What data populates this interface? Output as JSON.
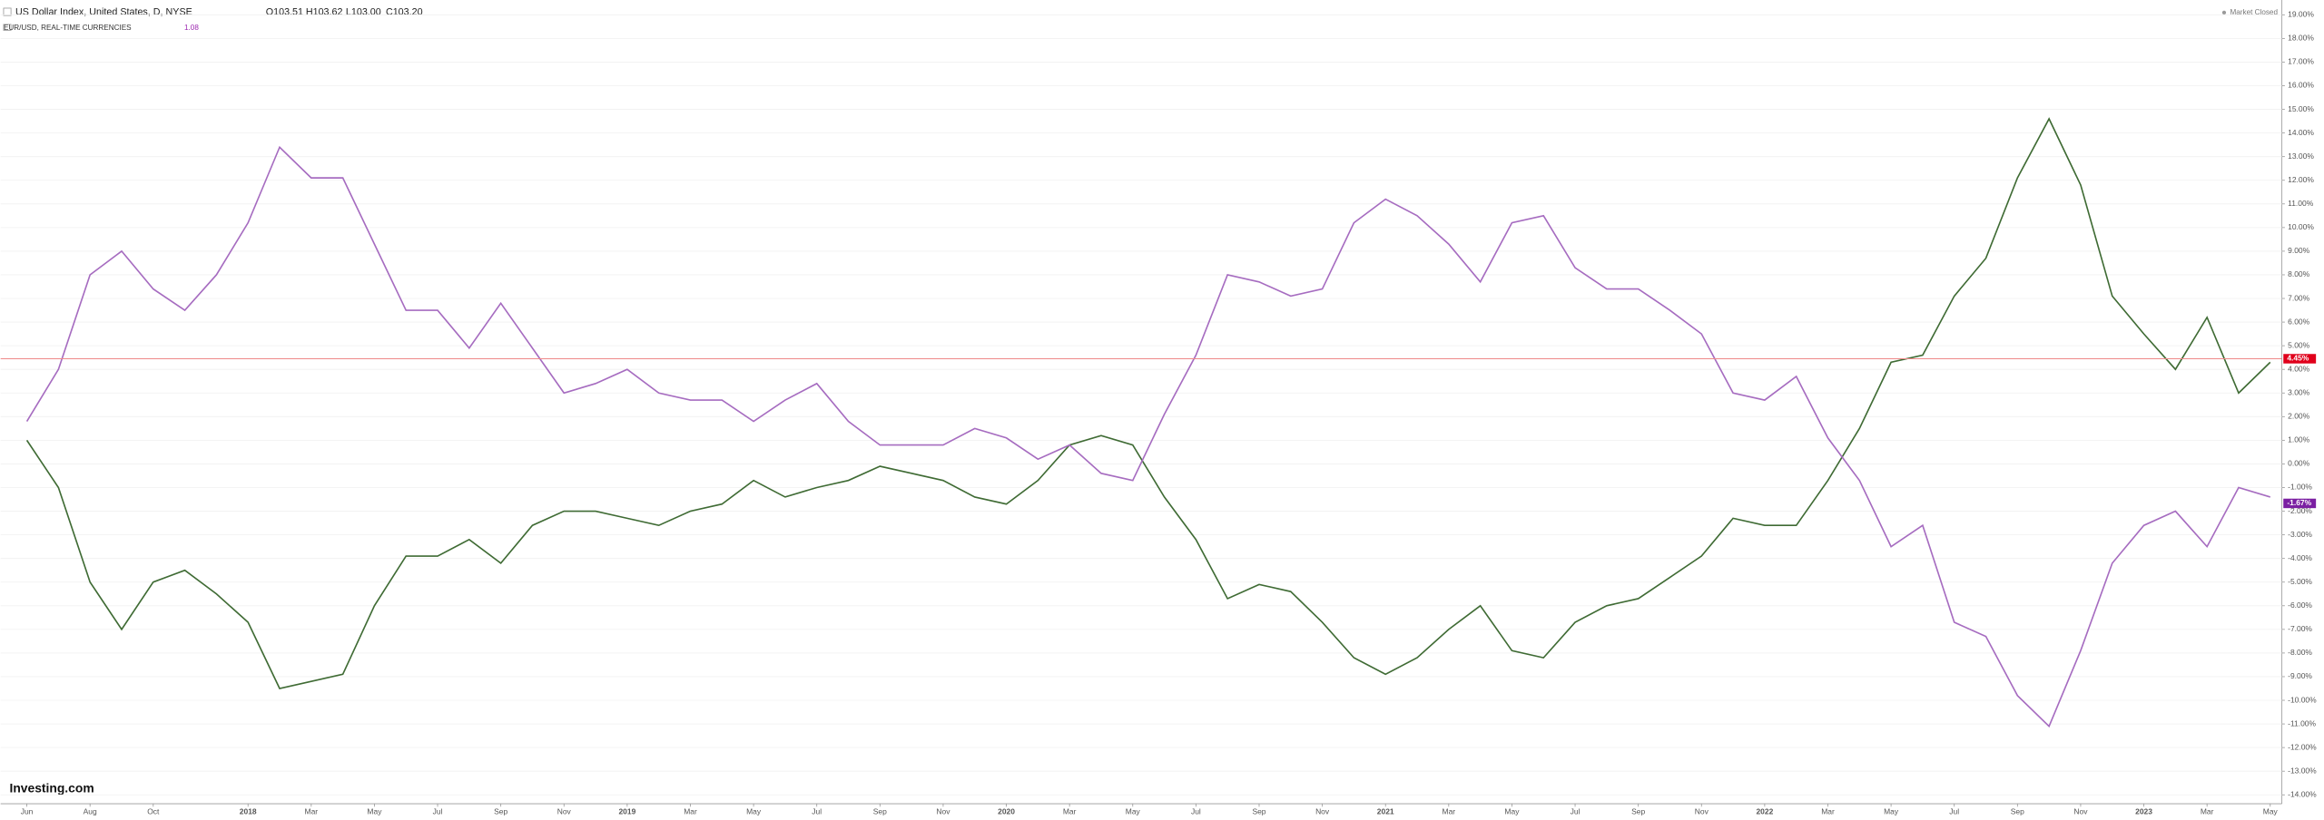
{
  "chart_data": {
    "type": "line",
    "status": "Market Closed",
    "brand": "Investing.com",
    "ohlc": [
      "O103.51",
      "H103.62",
      "L103.00",
      "C103.20"
    ],
    "subtitle_value": 1.08,
    "categories": [
      "Jun",
      null,
      "Aug",
      null,
      "Oct",
      null,
      null,
      "2018",
      null,
      "Mar",
      null,
      "May",
      null,
      "Jul",
      null,
      "Sep",
      null,
      "Nov",
      null,
      "2019",
      null,
      "Mar",
      null,
      "May",
      null,
      "Jul",
      null,
      "Sep",
      null,
      "Nov",
      null,
      "2020",
      null,
      "Mar",
      null,
      "May",
      null,
      "Jul",
      null,
      "Sep",
      null,
      "Nov",
      null,
      "2021",
      null,
      "Mar",
      null,
      "May",
      null,
      "Jul",
      null,
      "Sep",
      null,
      "Nov",
      null,
      "2022",
      null,
      "Mar",
      null,
      "May",
      null,
      "Jul",
      null,
      "Sep",
      null,
      "Nov",
      null,
      "2023",
      null,
      "Mar",
      null,
      "May"
    ],
    "series": [
      {
        "name": "US Dollar Index, United States, D, NYSE",
        "color": "#3f6b34",
        "values": [
          1,
          -1,
          -5,
          -7,
          -5,
          -4.5,
          -5.5,
          -6.7,
          -9.5,
          -9.2,
          -8.9,
          -6,
          -3.9,
          -3.9,
          -3.2,
          -4.2,
          -2.6,
          -2,
          -2,
          -2.3,
          -2.6,
          -2,
          -1.7,
          -0.7,
          -1.4,
          -1,
          -0.7,
          -0.1,
          -0.4,
          -0.7,
          -1.4,
          -1.7,
          -0.7,
          0.8,
          1.2,
          0.8,
          -1.4,
          -3.2,
          -5.7,
          -5.1,
          -5.4,
          -6.7,
          -8.2,
          -8.9,
          -8.2,
          -7,
          -6,
          -7.9,
          -8.2,
          -6.7,
          -6,
          -5.7,
          -4.8,
          -3.9,
          -2.3,
          -2.6,
          -2.6,
          -0.7,
          1.5,
          4.3,
          4.6,
          7.1,
          8.7,
          12.1,
          14.6,
          11.8,
          7.1,
          5.5,
          4,
          6.2,
          3,
          4.3
        ],
        "last": {
          "value": 4.45,
          "label": "4.45%"
        },
        "marker_color": "#e0001b"
      },
      {
        "name": "EUR/USD, REAL-TIME CURRENCIES",
        "color": "#a66cc0",
        "values": [
          1.8,
          4,
          8,
          9,
          7.4,
          6.5,
          8,
          10.2,
          13.4,
          12.1,
          12.1,
          9.3,
          6.5,
          6.5,
          4.9,
          6.8,
          4.9,
          3,
          3.4,
          4,
          3,
          2.7,
          2.7,
          1.8,
          2.7,
          3.4,
          1.8,
          0.8,
          0.8,
          0.8,
          1.5,
          1.1,
          0.2,
          0.8,
          -0.4,
          -0.7,
          2.1,
          4.6,
          8,
          7.7,
          7.1,
          7.4,
          10.2,
          11.2,
          10.5,
          9.3,
          7.7,
          10.2,
          10.5,
          8.3,
          7.4,
          7.4,
          6.5,
          5.5,
          3,
          2.7,
          3.7,
          1.1,
          -0.7,
          -3.5,
          -2.6,
          -6.7,
          -7.3,
          -9.8,
          -11.1,
          -7.9,
          -4.2,
          -2.6,
          -2,
          -3.5,
          -1,
          -1.4
        ],
        "last": {
          "value": -1.67,
          "label": "-1.67%"
        },
        "marker_color": "#7b1fa2"
      }
    ],
    "ylim": [
      -14.2,
      19.6
    ],
    "yticks": [
      {
        "value": 19,
        "label": "19.00%"
      },
      {
        "value": 18,
        "label": "18.00%"
      },
      {
        "value": 17,
        "label": "17.00%"
      },
      {
        "value": 16,
        "label": "16.00%"
      },
      {
        "value": 15,
        "label": "15.00%"
      },
      {
        "value": 14,
        "label": "14.00%"
      },
      {
        "value": 13,
        "label": "13.00%"
      },
      {
        "value": 12,
        "label": "12.00%"
      },
      {
        "value": 11,
        "label": "11.00%"
      },
      {
        "value": 10,
        "label": "10.00%"
      },
      {
        "value": 9,
        "label": "9.00%"
      },
      {
        "value": 8,
        "label": "8.00%"
      },
      {
        "value": 7,
        "label": "7.00%"
      },
      {
        "value": 6,
        "label": "6.00%"
      },
      {
        "value": 5,
        "label": "5.00%"
      },
      {
        "value": 4,
        "label": "4.00%"
      },
      {
        "value": 3,
        "label": "3.00%"
      },
      {
        "value": 2,
        "label": "2.00%"
      },
      {
        "value": 1,
        "label": "1.00%"
      },
      {
        "value": 0,
        "label": "0.00%"
      },
      {
        "value": -1,
        "label": "-1.00%"
      },
      {
        "value": -2,
        "label": "-2.00%"
      },
      {
        "value": -3,
        "label": "-3.00%"
      },
      {
        "value": -4,
        "label": "-4.00%"
      },
      {
        "value": -5,
        "label": "-5.00%"
      },
      {
        "value": -6,
        "label": "-6.00%"
      },
      {
        "value": -7,
        "label": "-7.00%"
      },
      {
        "value": -8,
        "label": "-8.00%"
      },
      {
        "value": -9,
        "label": "-9.00%"
      },
      {
        "value": -10,
        "label": "-10.00%"
      },
      {
        "value": -11,
        "label": "-11.00%"
      },
      {
        "value": -12,
        "label": "-12.00%"
      },
      {
        "value": -13,
        "label": "-13.00%"
      },
      {
        "value": -14,
        "label": "-14.00%"
      }
    ],
    "grid": true
  }
}
